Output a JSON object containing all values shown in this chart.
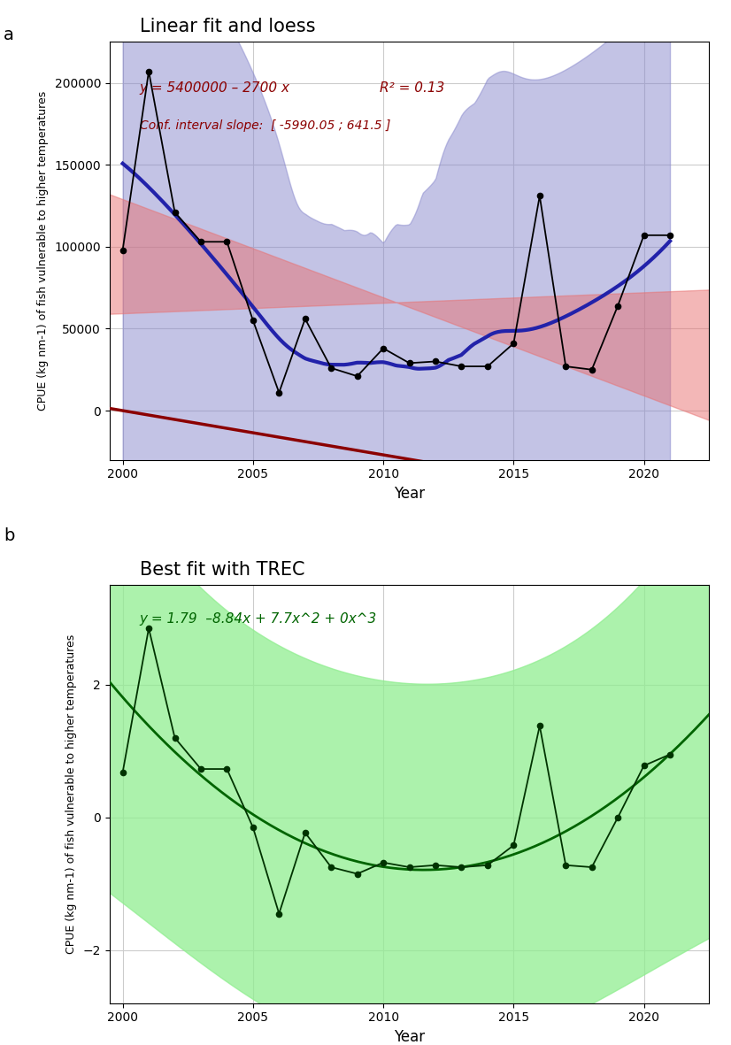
{
  "panel_a": {
    "title": "Linear fit and loess",
    "ylabel": "CPUE (kg nm-1) of fish vulnerable to higher temperatures",
    "xlabel": "Year",
    "years": [
      2000,
      2001,
      2002,
      2003,
      2004,
      2005,
      2006,
      2007,
      2008,
      2009,
      2010,
      2011,
      2012,
      2013,
      2014,
      2015,
      2016,
      2017,
      2018,
      2019,
      2020,
      2021
    ],
    "values": [
      98000,
      207000,
      121000,
      103000,
      103000,
      55000,
      11000,
      56000,
      26000,
      21000,
      38000,
      29000,
      30000,
      27000,
      27000,
      41000,
      131000,
      27000,
      25000,
      64000,
      107000,
      107000
    ],
    "linear_intercept": 5400000,
    "linear_slope": -2700,
    "r2": 0.13,
    "ci_slope_low": -5990.05,
    "ci_slope_high": 641.5,
    "equation_text": "y = 5400000 – 2700 x",
    "r2_text": "R² = 0.13",
    "ci_text": "Conf. interval slope:  [ -5990.05 ; 641.5 ]",
    "linear_color": "#8B0000",
    "loess_color": "#2222AA",
    "data_color": "#000000",
    "linear_ci_color": "#E87070",
    "loess_ci_color": "#8888CC",
    "ylim": [
      -30000,
      225000
    ],
    "yticks": [
      0,
      50000,
      100000,
      150000,
      200000
    ],
    "xlim": [
      1999.5,
      2022.5
    ]
  },
  "panel_b": {
    "title": "Best fit with TREC",
    "ylabel": "CPUE (kg nm-1) of fish vulnerable to higher temperatures",
    "xlabel": "Year",
    "years": [
      2000,
      2001,
      2002,
      2003,
      2004,
      2005,
      2006,
      2007,
      2008,
      2009,
      2010,
      2011,
      2012,
      2013,
      2014,
      2015,
      2016,
      2017,
      2018,
      2019,
      2020,
      2021
    ],
    "values": [
      0.68,
      2.85,
      1.2,
      0.73,
      0.73,
      -0.15,
      -1.45,
      -0.23,
      -0.75,
      -0.85,
      -0.68,
      -0.75,
      -0.72,
      -0.75,
      -0.72,
      -0.42,
      1.38,
      -0.72,
      -0.75,
      0.0,
      0.78,
      0.95
    ],
    "equation_text": "y = 1.79  –8.84x + 7.7x^2 + 0x^3",
    "trec_color": "#006400",
    "trec_ci_color": "#90EE90",
    "data_color": "#003300",
    "ylim": [
      -2.8,
      3.5
    ],
    "yticks": [
      -2,
      0,
      2
    ],
    "xlim": [
      1999.5,
      2022.5
    ]
  },
  "background_color": "#FFFFFF",
  "grid_color": "#CCCCCC",
  "panel_bg": "#FFFFFF"
}
